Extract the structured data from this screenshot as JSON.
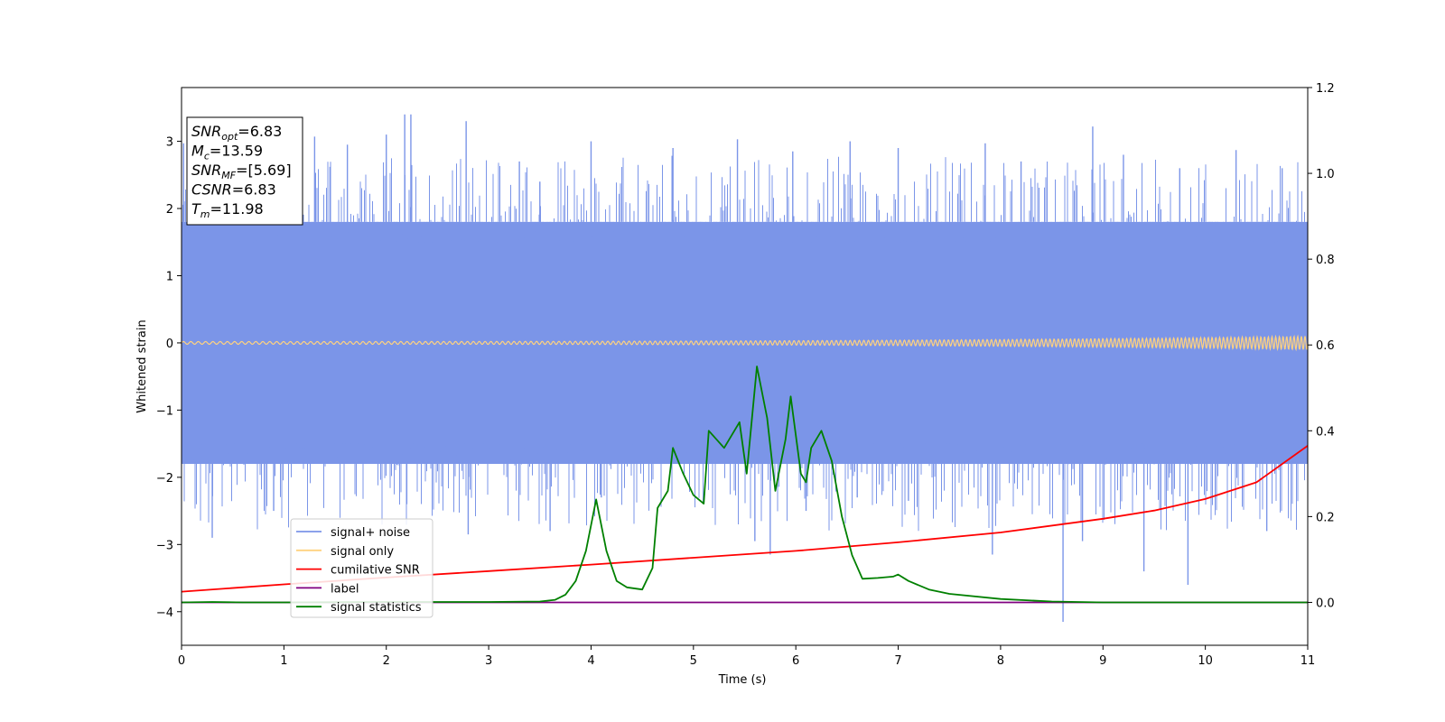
{
  "chart_data": {
    "type": "line",
    "xlabel": "Time (s)",
    "ylabel": "Whitened strain",
    "xlim": [
      0,
      11
    ],
    "ylim_left": [
      -4.5,
      3.8
    ],
    "ylim_right": [
      -0.1,
      1.2
    ],
    "x_ticks": [
      "0",
      "1",
      "2",
      "3",
      "4",
      "5",
      "6",
      "7",
      "8",
      "9",
      "10",
      "11"
    ],
    "y_left_ticks": [
      "−4",
      "−3",
      "−2",
      "−1",
      "0",
      "1",
      "2",
      "3"
    ],
    "y_right_ticks": [
      "0.0",
      "0.2",
      "0.4",
      "0.6",
      "0.8",
      "1.0",
      "1.2"
    ],
    "grid": false,
    "legend_position": "lower-left",
    "legend": [
      {
        "label": "signal+ noise",
        "color": "#7b95e8"
      },
      {
        "label": "signal only",
        "color": "#ffd27f"
      },
      {
        "label": "cumilative SNR",
        "color": "#ff0000"
      },
      {
        "label": "label",
        "color": "#800080"
      },
      {
        "label": "signal statistics",
        "color": "#008000"
      }
    ],
    "info_box": [
      {
        "main": "SNR",
        "sub": "opt",
        "rest": "=6.83"
      },
      {
        "main": "M",
        "sub": "c",
        "rest": "=13.59"
      },
      {
        "main": "SNR",
        "sub": "MF",
        "rest": "=[5.69]"
      },
      {
        "main": "CSNR",
        "sub": "",
        "rest": "=6.83"
      },
      {
        "main": "T",
        "sub": "m",
        "rest": "=11.98"
      }
    ],
    "series": [
      {
        "name": "signal+ noise",
        "axis": "left",
        "color": "#7b95e8",
        "band_low": -1.8,
        "band_high": 1.8,
        "peaks": [
          {
            "x": 0.02,
            "y": 2.97
          },
          {
            "x": 0.3,
            "y": -2.9
          },
          {
            "x": 0.87,
            "y": 2.47
          },
          {
            "x": 0.9,
            "y": -2.5
          },
          {
            "x": 1.3,
            "y": 3.07
          },
          {
            "x": 1.45,
            "y": 2.62
          },
          {
            "x": 1.62,
            "y": 2.95
          },
          {
            "x": 2.0,
            "y": 3.1
          },
          {
            "x": 2.18,
            "y": 3.4
          },
          {
            "x": 2.24,
            "y": 3.4
          },
          {
            "x": 2.2,
            "y": -2.4
          },
          {
            "x": 2.78,
            "y": 3.3
          },
          {
            "x": 2.8,
            "y": -2.85
          },
          {
            "x": 3.3,
            "y": 2.7
          },
          {
            "x": 3.6,
            "y": -2.8
          },
          {
            "x": 3.5,
            "y": 2.4
          },
          {
            "x": 4.0,
            "y": 3.0
          },
          {
            "x": 4.1,
            "y": -2.3
          },
          {
            "x": 4.8,
            "y": 2.9
          },
          {
            "x": 5.43,
            "y": 3.03
          },
          {
            "x": 5.6,
            "y": -2.95
          },
          {
            "x": 5.75,
            "y": -3.15
          },
          {
            "x": 5.97,
            "y": 2.85
          },
          {
            "x": 6.1,
            "y": -2.5
          },
          {
            "x": 6.53,
            "y": 3.0
          },
          {
            "x": 6.6,
            "y": -2.3
          },
          {
            "x": 7.0,
            "y": 2.9
          },
          {
            "x": 7.1,
            "y": -2.35
          },
          {
            "x": 7.85,
            "y": 2.97
          },
          {
            "x": 7.92,
            "y": -3.15
          },
          {
            "x": 8.2,
            "y": 2.7
          },
          {
            "x": 8.61,
            "y": -4.15
          },
          {
            "x": 8.8,
            "y": -2.95
          },
          {
            "x": 8.9,
            "y": 3.22
          },
          {
            "x": 9.2,
            "y": 2.8
          },
          {
            "x": 9.4,
            "y": -3.4
          },
          {
            "x": 9.75,
            "y": 2.6
          },
          {
            "x": 9.83,
            "y": -3.6
          },
          {
            "x": 10.3,
            "y": 2.87
          },
          {
            "x": 10.6,
            "y": -2.8
          },
          {
            "x": 10.75,
            "y": 2.6
          }
        ]
      },
      {
        "name": "signal only",
        "axis": "left",
        "color": "#ffd27f",
        "x_start": 0,
        "x_end": 11,
        "amplitude_start": 0.02,
        "amplitude_end": 0.1
      },
      {
        "name": "cumilative SNR",
        "axis": "right",
        "color": "#ff0000",
        "x": [
          0,
          1,
          2,
          3,
          4,
          5,
          6,
          7,
          8,
          9,
          9.5,
          10,
          10.5,
          11
        ],
        "y": [
          0.025,
          0.042,
          0.058,
          0.073,
          0.088,
          0.104,
          0.12,
          0.14,
          0.163,
          0.195,
          0.214,
          0.241,
          0.28,
          0.365
        ]
      },
      {
        "name": "label",
        "axis": "right",
        "color": "#800080",
        "x": [
          0,
          11
        ],
        "y": [
          0.0,
          0.0
        ]
      },
      {
        "name": "signal statistics",
        "axis": "right",
        "color": "#008000",
        "x": [
          0,
          0.3,
          0.6,
          1.0,
          2.0,
          3.0,
          3.5,
          3.65,
          3.75,
          3.85,
          3.95,
          4.05,
          4.15,
          4.25,
          4.35,
          4.5,
          4.6,
          4.65,
          4.75,
          4.8,
          4.9,
          5.0,
          5.1,
          5.15,
          5.3,
          5.45,
          5.52,
          5.62,
          5.72,
          5.8,
          5.9,
          5.95,
          6.05,
          6.1,
          6.15,
          6.25,
          6.35,
          6.45,
          6.55,
          6.65,
          6.8,
          6.95,
          7.0,
          7.1,
          7.3,
          7.5,
          8.0,
          8.5,
          9.0,
          11.0
        ],
        "y": [
          0.0,
          0.001,
          0.0,
          0.0,
          0.001,
          0.001,
          0.002,
          0.006,
          0.018,
          0.05,
          0.12,
          0.24,
          0.12,
          0.05,
          0.035,
          0.03,
          0.08,
          0.22,
          0.26,
          0.36,
          0.3,
          0.25,
          0.23,
          0.4,
          0.36,
          0.42,
          0.3,
          0.55,
          0.43,
          0.26,
          0.38,
          0.48,
          0.3,
          0.28,
          0.36,
          0.4,
          0.33,
          0.2,
          0.11,
          0.055,
          0.057,
          0.06,
          0.065,
          0.05,
          0.03,
          0.02,
          0.008,
          0.002,
          0.0,
          0.0
        ]
      }
    ]
  }
}
